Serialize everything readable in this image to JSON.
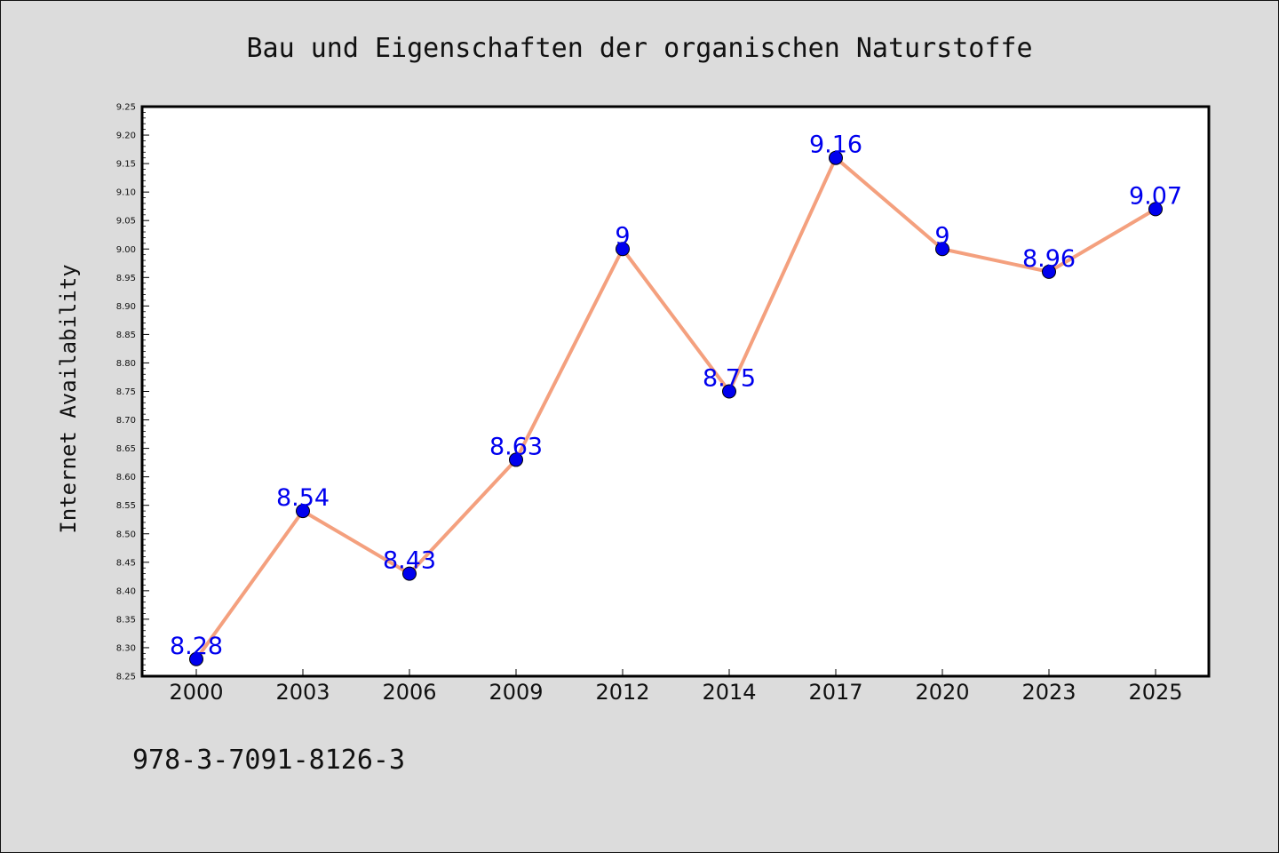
{
  "chart_data": {
    "type": "line",
    "title": "Bau und Eigenschaften der organischen Naturstoffe",
    "xlabel": "",
    "ylabel": "Internet Availability",
    "categories": [
      "2000",
      "2003",
      "2006",
      "2009",
      "2012",
      "2014",
      "2017",
      "2020",
      "2023",
      "2025"
    ],
    "series": [
      {
        "values": [
          8.28,
          8.54,
          8.43,
          8.63,
          9,
          8.75,
          9.16,
          9,
          8.96,
          9.07
        ],
        "labels": [
          "8.28",
          "8.54",
          "8.43",
          "8.63",
          "9",
          "8.75",
          "9.16",
          "9",
          "8.96",
          "9.07"
        ]
      }
    ],
    "ylim": [
      8.25,
      9.25
    ],
    "yticks": [
      "8.25",
      "8.30",
      "8.35",
      "8.40",
      "8.45",
      "8.50",
      "8.55",
      "8.60",
      "8.65",
      "8.70",
      "8.75",
      "8.80",
      "8.85",
      "8.90",
      "8.95",
      "9.00",
      "9.05",
      "9.10",
      "9.15",
      "9.20",
      "9.25"
    ],
    "grid": false,
    "legend": "none",
    "colors": {
      "line": "#f4a07e",
      "marker": "#0000ee",
      "marker_edge": "#000000",
      "data_label": "#0000ee",
      "background": "#dcdcdc",
      "plot_background": "#ffffff"
    }
  },
  "footer": {
    "code": "978-3-7091-8126-3"
  }
}
